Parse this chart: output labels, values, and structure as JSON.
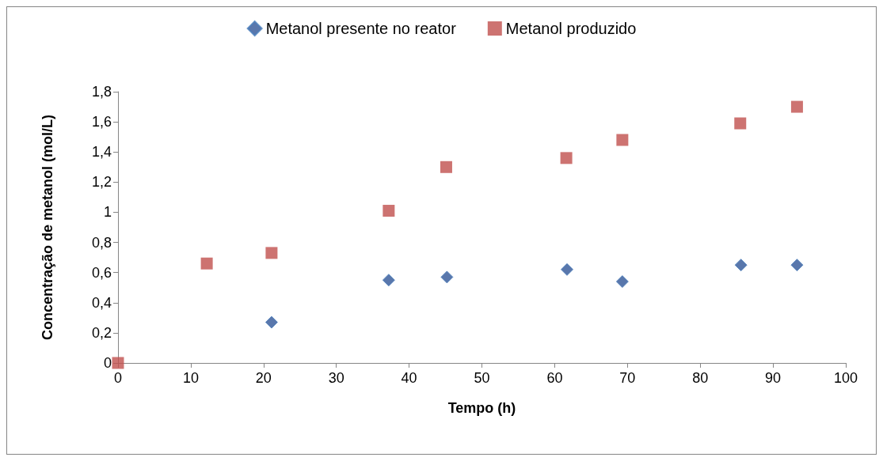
{
  "chart_data": {
    "type": "scatter",
    "xlabel": "Tempo (h)",
    "ylabel": "Concentração de metanol (mol/L)",
    "xlim": [
      0,
      100
    ],
    "xticks": [
      0,
      10,
      20,
      30,
      40,
      50,
      60,
      70,
      80,
      90,
      100
    ],
    "ylim": [
      0,
      1.8
    ],
    "yticks": [
      {
        "value": 0,
        "label": "0"
      },
      {
        "value": 0.2,
        "label": "0,2"
      },
      {
        "value": 0.4,
        "label": "0,4"
      },
      {
        "value": 0.6,
        "label": "0,6"
      },
      {
        "value": 0.8,
        "label": "0,8"
      },
      {
        "value": 1,
        "label": "1"
      },
      {
        "value": 1.2,
        "label": "1,2"
      },
      {
        "value": 1.4,
        "label": "1,4"
      },
      {
        "value": 1.6,
        "label": "1,6"
      },
      {
        "value": 1.8,
        "label": "1,8"
      }
    ],
    "grid": false,
    "legend": "top",
    "series": [
      {
        "name": "Metanol presente no reator",
        "color": "#2f5597",
        "marker": "diamond",
        "x": [
          21.1,
          37.2,
          45.2,
          61.7,
          69.3,
          85.6,
          93.3
        ],
        "values": [
          0.27,
          0.55,
          0.57,
          0.62,
          0.54,
          0.65,
          0.65
        ]
      },
      {
        "name": "Metanol produzido",
        "color": "#c0504d",
        "marker": "square",
        "x": [
          0,
          12.2,
          21.1,
          37.2,
          45.1,
          61.6,
          69.3,
          85.5,
          93.3
        ],
        "values": [
          0,
          0.66,
          0.73,
          1.01,
          1.3,
          1.36,
          1.48,
          1.59,
          1.7
        ]
      }
    ]
  }
}
